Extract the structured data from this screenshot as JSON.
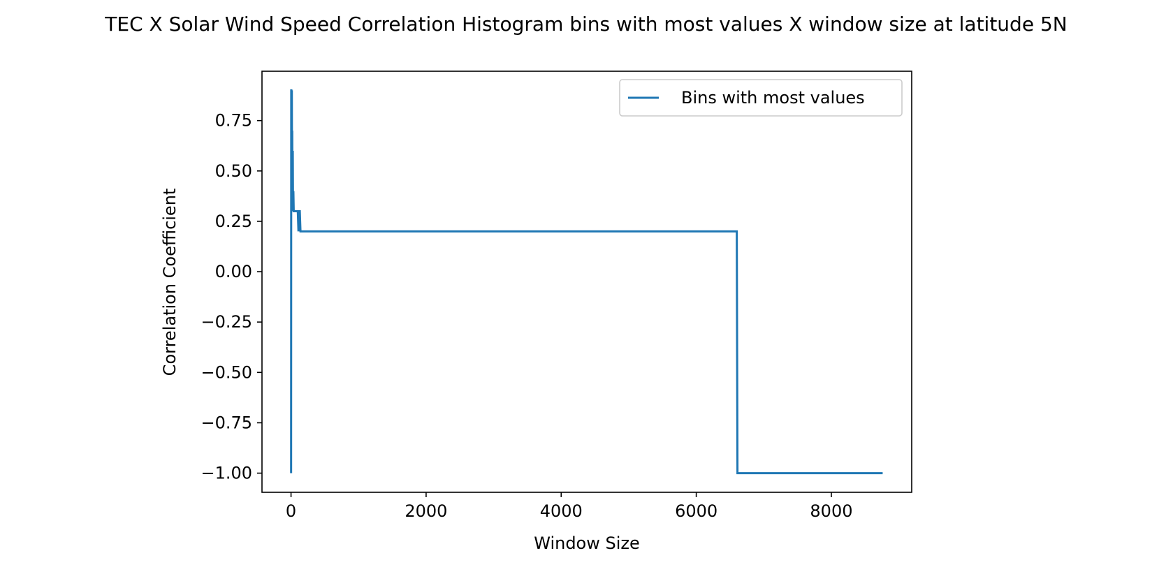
{
  "chart_data": {
    "type": "line",
    "title": "TEC X Solar Wind Speed Correlation Histogram bins with most values X window size at latitude 5N",
    "xlabel": "Window Size",
    "ylabel": "Correlation Coefficient",
    "xlim": [
      -430,
      9190
    ],
    "ylim": [
      -1.095,
      0.995
    ],
    "x_ticks": [
      {
        "value": 0,
        "label": "0"
      },
      {
        "value": 2000,
        "label": "2000"
      },
      {
        "value": 4000,
        "label": "4000"
      },
      {
        "value": 6000,
        "label": "6000"
      },
      {
        "value": 8000,
        "label": "8000"
      }
    ],
    "y_ticks": [
      {
        "value": 0.75,
        "label": "0.75"
      },
      {
        "value": 0.5,
        "label": "0.50"
      },
      {
        "value": 0.25,
        "label": "0.25"
      },
      {
        "value": 0.0,
        "label": "0.00"
      },
      {
        "value": -0.25,
        "label": "−0.25"
      },
      {
        "value": -0.5,
        "label": "−0.50"
      },
      {
        "value": -0.75,
        "label": "−0.75"
      },
      {
        "value": -1.0,
        "label": "−1.00"
      }
    ],
    "grid": false,
    "legend_position": "top-right",
    "series": [
      {
        "name": "Bins with most values",
        "color": "#1f77b4",
        "x": [
          1,
          2,
          3,
          5,
          8,
          12,
          15,
          18,
          22,
          26,
          30,
          35,
          40,
          45,
          50,
          55,
          60,
          65,
          70,
          80,
          90,
          100,
          110,
          120,
          130,
          140,
          150,
          200,
          400,
          1000,
          3000,
          5000,
          6600,
          6610,
          7000,
          8000,
          8760
        ],
        "values": [
          -1.0,
          0.0,
          0.9,
          0.9,
          0.3,
          0.9,
          0.4,
          0.7,
          0.3,
          0.6,
          0.3,
          0.4,
          0.3,
          0.3,
          0.3,
          0.3,
          0.3,
          0.3,
          0.3,
          0.3,
          0.3,
          0.3,
          0.2,
          0.3,
          0.3,
          0.2,
          0.2,
          0.2,
          0.2,
          0.2,
          0.2,
          0.2,
          0.2,
          -1.0,
          -1.0,
          -1.0,
          -1.0
        ]
      }
    ]
  }
}
